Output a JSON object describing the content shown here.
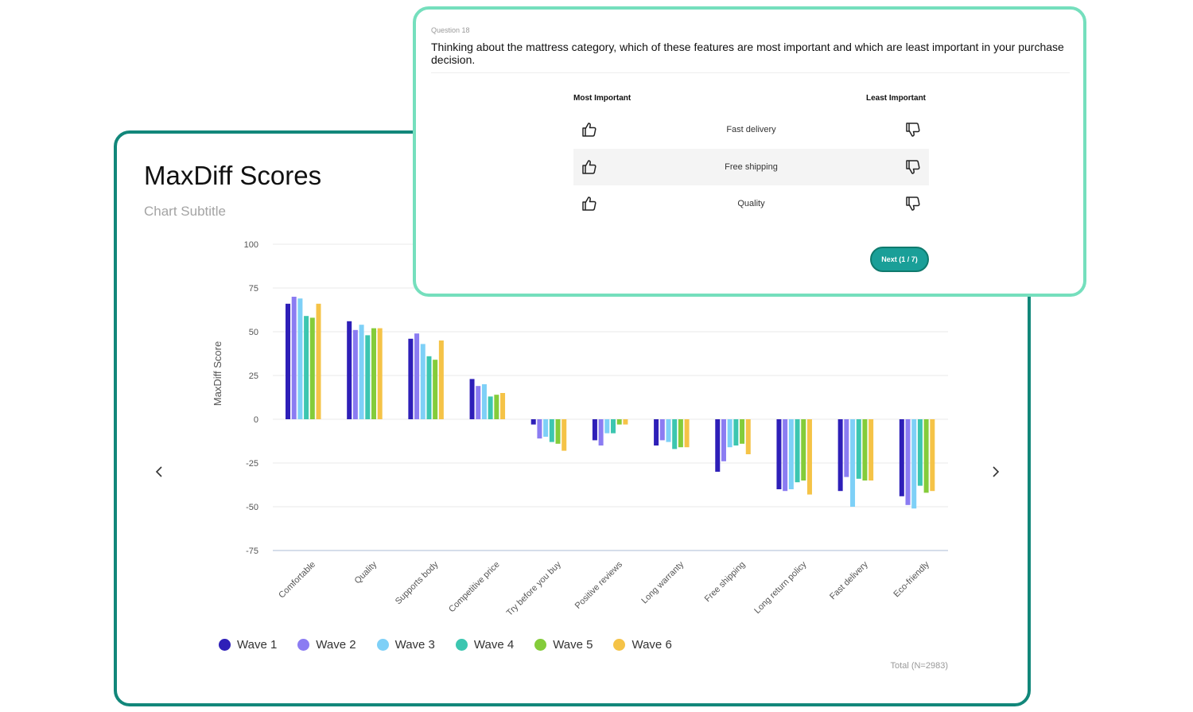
{
  "chart_card": {
    "title": "MaxDiff Scores",
    "subtitle": "Chart Subtitle",
    "total_note": "Total (N=2983)",
    "prev_icon": "chevron-left-icon",
    "next_icon": "chevron-right-icon"
  },
  "chart_data": {
    "type": "bar",
    "title": "MaxDiff Scores",
    "subtitle": "Chart Subtitle",
    "xlabel": "",
    "ylabel": "MaxDiff Score",
    "ylim": [
      -75,
      100
    ],
    "yticks": [
      "100",
      "75",
      "50",
      "25",
      "0",
      "-25",
      "-50",
      "-75"
    ],
    "ytick_values": [
      100,
      75,
      50,
      25,
      0,
      -25,
      -50,
      -75
    ],
    "grid": true,
    "legend_position": "bottom-left",
    "categories": [
      "Comfortable",
      "Quality",
      "Supports body",
      "Competitive price",
      "Try before you buy",
      "Positive reviews",
      "Long warranty",
      "Free shipping",
      "Long return policy",
      "Fast delivery",
      "Eco-friendly"
    ],
    "series": [
      {
        "name": "Wave 1",
        "color": "#2e1fb8",
        "values": [
          66,
          56,
          46,
          23,
          -3,
          -12,
          -15,
          -30,
          -40,
          -41,
          -44
        ]
      },
      {
        "name": "Wave 2",
        "color": "#8b7cf2",
        "values": [
          70,
          51,
          49,
          19,
          -11,
          -15,
          -12,
          -24,
          -41,
          -33,
          -49
        ]
      },
      {
        "name": "Wave 3",
        "color": "#7ed0f7",
        "values": [
          69,
          54,
          43,
          20,
          -10,
          -8,
          -13,
          -16,
          -40,
          -50,
          -51
        ]
      },
      {
        "name": "Wave 4",
        "color": "#3cc6b0",
        "values": [
          59,
          48,
          36,
          13,
          -13,
          -8,
          -17,
          -15,
          -36,
          -34,
          -38
        ]
      },
      {
        "name": "Wave 5",
        "color": "#84cc3a",
        "values": [
          58,
          52,
          34,
          14,
          -14,
          -3,
          -16,
          -14,
          -35,
          -35,
          -42
        ]
      },
      {
        "name": "Wave 6",
        "color": "#f5c347",
        "values": [
          66,
          52,
          45,
          15,
          -18,
          -3,
          -16,
          -20,
          -43,
          -35,
          -41
        ]
      }
    ]
  },
  "survey": {
    "question_number": "Question 18",
    "question_text": "Thinking about the mattress category, which of these features are most important and which are least important in your purchase decision.",
    "most_label": "Most Important",
    "least_label": "Least Important",
    "options": [
      {
        "label": "Fast delivery",
        "most_icon": "thumbs-up-icon",
        "least_icon": "thumbs-down-icon"
      },
      {
        "label": "Free shipping",
        "most_icon": "thumbs-up-icon",
        "least_icon": "thumbs-down-icon"
      },
      {
        "label": "Quality",
        "most_icon": "thumbs-up-icon",
        "least_icon": "thumbs-down-icon"
      }
    ],
    "next_button": "Next (1 / 7)",
    "button_color": "#1a9f98"
  }
}
